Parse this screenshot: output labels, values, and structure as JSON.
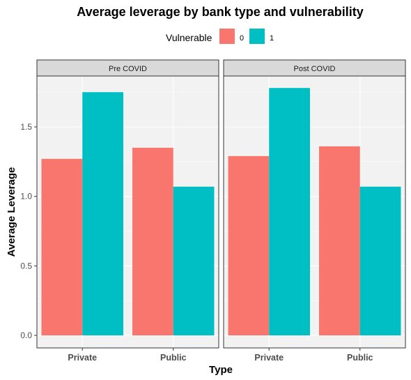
{
  "chart_data": {
    "type": "bar",
    "title": "Average leverage by bank type and vulnerability",
    "xlabel": "Type",
    "ylabel": "Average Leverage",
    "legend": {
      "title": "Vulnerable",
      "position": "top",
      "entries": [
        {
          "label": "0",
          "color": "#F8766D"
        },
        {
          "label": "1",
          "color": "#00BFC4"
        }
      ]
    },
    "categories": [
      "Private",
      "Public"
    ],
    "ylim": [
      0,
      1.86
    ],
    "yticks": [
      0.0,
      0.5,
      1.0,
      1.5
    ],
    "ytick_labels": [
      "0.0",
      "0.5",
      "1.0",
      "1.5"
    ],
    "grid": true,
    "facets": [
      {
        "label": "Pre COVID",
        "series": [
          {
            "name": "0",
            "values": [
              1.27,
              1.35
            ]
          },
          {
            "name": "1",
            "values": [
              1.75,
              1.07
            ]
          }
        ]
      },
      {
        "label": "Post COVID",
        "series": [
          {
            "name": "0",
            "values": [
              1.29,
              1.36
            ]
          },
          {
            "name": "1",
            "values": [
              1.78,
              1.07
            ]
          }
        ]
      }
    ]
  }
}
